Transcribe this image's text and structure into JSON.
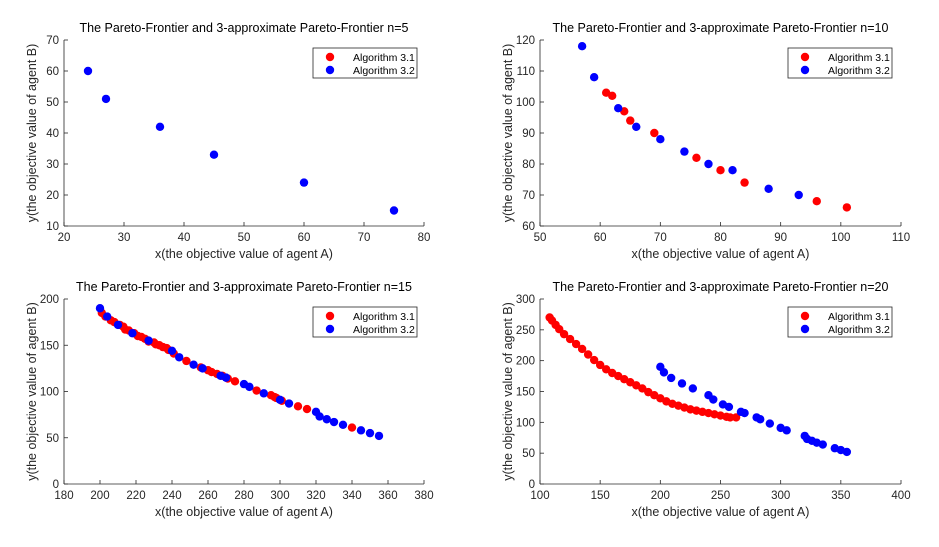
{
  "chart_data": [
    {
      "type": "scatter",
      "title": "The Pareto-Frontier and 3-approximate Pareto-Frontier n=5",
      "xlabel": "x(the objective value of agent A)",
      "ylabel": "y(the objective value of agent B)",
      "xlim": [
        20,
        80
      ],
      "ylim": [
        10,
        70
      ],
      "xticks": [
        20,
        30,
        40,
        50,
        60,
        70,
        80
      ],
      "yticks": [
        10,
        20,
        30,
        40,
        50,
        60,
        70
      ],
      "legend_placement": "top-right",
      "grid": false,
      "series": [
        {
          "name": "Algorithm 3.1",
          "color": "#ff0000",
          "points": []
        },
        {
          "name": "Algorithm 3.2",
          "color": "#0000ff",
          "points": [
            [
              24,
              60
            ],
            [
              27,
              51
            ],
            [
              36,
              42
            ],
            [
              45,
              33
            ],
            [
              60,
              24
            ],
            [
              75,
              15
            ]
          ]
        }
      ]
    },
    {
      "type": "scatter",
      "title": "The Pareto-Frontier and 3-approximate Pareto-Frontier n=10",
      "xlabel": "x(the objective value of agent A)",
      "ylabel": "y(the objective value of agent B)",
      "xlim": [
        50,
        110
      ],
      "ylim": [
        60,
        120
      ],
      "xticks": [
        50,
        60,
        70,
        80,
        90,
        100,
        110
      ],
      "yticks": [
        60,
        70,
        80,
        90,
        100,
        110,
        120
      ],
      "legend_placement": "top-right",
      "grid": false,
      "series": [
        {
          "name": "Algorithm 3.1",
          "color": "#ff0000",
          "points": [
            [
              61,
              103
            ],
            [
              62,
              102
            ],
            [
              64,
              97
            ],
            [
              65,
              94
            ],
            [
              69,
              90
            ],
            [
              76,
              82
            ],
            [
              80,
              78
            ],
            [
              84,
              74
            ],
            [
              96,
              68
            ],
            [
              101,
              66
            ]
          ]
        },
        {
          "name": "Algorithm 3.2",
          "color": "#0000ff",
          "points": [
            [
              57,
              118
            ],
            [
              59,
              108
            ],
            [
              63,
              98
            ],
            [
              66,
              92
            ],
            [
              70,
              88
            ],
            [
              74,
              84
            ],
            [
              78,
              80
            ],
            [
              82,
              78
            ],
            [
              88,
              72
            ],
            [
              93,
              70
            ]
          ]
        }
      ]
    },
    {
      "type": "scatter",
      "title": "The Pareto-Frontier and 3-approximate Pareto-Frontier n=15",
      "xlabel": "x(the objective value of agent A)",
      "ylabel": "y(the objective value of agent B)",
      "xlim": [
        180,
        380
      ],
      "ylim": [
        0,
        200
      ],
      "xticks": [
        180,
        200,
        220,
        240,
        260,
        280,
        300,
        320,
        340,
        360,
        380
      ],
      "yticks": [
        0,
        50,
        100,
        150,
        200
      ],
      "legend_placement": "top-right",
      "grid": false,
      "series": [
        {
          "name": "Algorithm 3.1",
          "color": "#ff0000",
          "points": [
            [
              201,
              185
            ],
            [
              203,
              181
            ],
            [
              206,
              177
            ],
            [
              208,
              175
            ],
            [
              211,
              172
            ],
            [
              213,
              170
            ],
            [
              214,
              167
            ],
            [
              216,
              166
            ],
            [
              219,
              163
            ],
            [
              221,
              160
            ],
            [
              223,
              159
            ],
            [
              225,
              157
            ],
            [
              227,
              154
            ],
            [
              230,
              153
            ],
            [
              231,
              151
            ],
            [
              233,
              150
            ],
            [
              235,
              148
            ],
            [
              237,
              147
            ],
            [
              238,
              145
            ],
            [
              241,
              141
            ],
            [
              248,
              133
            ],
            [
              256,
              126
            ],
            [
              260,
              123
            ],
            [
              262,
              121
            ],
            [
              265,
              119
            ],
            [
              268,
              117
            ],
            [
              271,
              114
            ],
            [
              275,
              111
            ],
            [
              287,
              101
            ],
            [
              295,
              96
            ],
            [
              297,
              94
            ],
            [
              298,
              93
            ],
            [
              301,
              90
            ],
            [
              310,
              84
            ],
            [
              315,
              81
            ],
            [
              340,
              61
            ]
          ]
        },
        {
          "name": "Algorithm 3.2",
          "color": "#0000ff",
          "points": [
            [
              200,
              190
            ],
            [
              204,
              181
            ],
            [
              210,
              172
            ],
            [
              218,
              163
            ],
            [
              227,
              155
            ],
            [
              240,
              144
            ],
            [
              244,
              137
            ],
            [
              252,
              129
            ],
            [
              257,
              125
            ],
            [
              267,
              117
            ],
            [
              270,
              115
            ],
            [
              280,
              108
            ],
            [
              283,
              105
            ],
            [
              291,
              98
            ],
            [
              300,
              91
            ],
            [
              305,
              87
            ],
            [
              320,
              78
            ],
            [
              322,
              73
            ],
            [
              326,
              70
            ],
            [
              330,
              67
            ],
            [
              335,
              64
            ],
            [
              345,
              58
            ],
            [
              350,
              55
            ],
            [
              355,
              52
            ]
          ]
        }
      ]
    },
    {
      "type": "scatter",
      "title": "The Pareto-Frontier and 3-approximate Pareto-Frontier n=20",
      "xlabel": "x(the objective value of agent A)",
      "ylabel": "y(the objective value of agent B)",
      "xlim": [
        100,
        400
      ],
      "ylim": [
        0,
        300
      ],
      "xticks": [
        100,
        150,
        200,
        250,
        300,
        350,
        400
      ],
      "yticks": [
        0,
        50,
        100,
        150,
        200,
        250,
        300
      ],
      "legend_placement": "top-right",
      "grid": false,
      "series": [
        {
          "name": "Algorithm 3.1",
          "color": "#ff0000",
          "points": [
            [
              108,
              270
            ],
            [
              110,
              265
            ],
            [
              113,
              258
            ],
            [
              116,
              251
            ],
            [
              120,
              243
            ],
            [
              125,
              235
            ],
            [
              130,
              227
            ],
            [
              135,
              219
            ],
            [
              140,
              210
            ],
            [
              145,
              201
            ],
            [
              150,
              193
            ],
            [
              155,
              186
            ],
            [
              160,
              180
            ],
            [
              165,
              175
            ],
            [
              170,
              170
            ],
            [
              175,
              165
            ],
            [
              180,
              160
            ],
            [
              185,
              155
            ],
            [
              190,
              149
            ],
            [
              195,
              144
            ],
            [
              200,
              139
            ],
            [
              205,
              134
            ],
            [
              210,
              130
            ],
            [
              215,
              127
            ],
            [
              220,
              124
            ],
            [
              225,
              121
            ],
            [
              230,
              119
            ],
            [
              235,
              117
            ],
            [
              240,
              115
            ],
            [
              245,
              113
            ],
            [
              250,
              111
            ],
            [
              255,
              109
            ],
            [
              258,
              108
            ],
            [
              263,
              108
            ]
          ]
        },
        {
          "name": "Algorithm 3.2",
          "color": "#0000ff",
          "points": [
            [
              200,
              190
            ],
            [
              203,
              181
            ],
            [
              209,
              172
            ],
            [
              218,
              163
            ],
            [
              227,
              155
            ],
            [
              240,
              144
            ],
            [
              244,
              137
            ],
            [
              252,
              129
            ],
            [
              257,
              125
            ],
            [
              267,
              117
            ],
            [
              270,
              115
            ],
            [
              280,
              108
            ],
            [
              283,
              105
            ],
            [
              291,
              98
            ],
            [
              300,
              91
            ],
            [
              305,
              87
            ],
            [
              320,
              78
            ],
            [
              322,
              73
            ],
            [
              326,
              70
            ],
            [
              330,
              67
            ],
            [
              335,
              64
            ],
            [
              345,
              58
            ],
            [
              350,
              55
            ],
            [
              355,
              52
            ]
          ]
        }
      ]
    }
  ]
}
